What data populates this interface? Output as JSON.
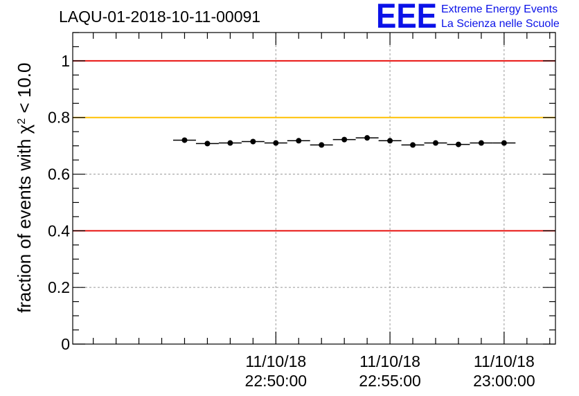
{
  "chart_data": {
    "type": "scatter",
    "title": "LAQU-01-2018-10-11-00091",
    "ylabel_prefix": "fraction of events with χ",
    "ylabel_sup": "2",
    "ylabel_suffix": " < 10.0",
    "xlabel": "",
    "ylim": [
      0,
      1.1
    ],
    "yticks": [
      0,
      0.2,
      0.4,
      0.6,
      0.8,
      1
    ],
    "ytick_labels": [
      "0",
      "0.2",
      "0.4",
      "0.6",
      "0.8",
      "1"
    ],
    "xlim_minutes": [
      -3.78,
      0.45
    ],
    "xticks": [
      {
        "min": -2.0,
        "date": "11/10/18",
        "time": "22:50:00"
      },
      {
        "min": -1.0,
        "date": "11/10/18",
        "time": "22:55:00"
      },
      {
        "min": 0.0,
        "date": "11/10/18",
        "time": "23:00:00"
      }
    ],
    "bin_width_minutes": 0.2,
    "reference_lines": [
      {
        "y": 1.0,
        "color": "#e8120f"
      },
      {
        "y": 0.8,
        "color": "#ffc000"
      },
      {
        "y": 0.4,
        "color": "#e8120f"
      }
    ],
    "series": [
      {
        "name": "fraction",
        "x_minutes": [
          -2.8,
          -2.6,
          -2.4,
          -2.2,
          -2.0,
          -1.8,
          -1.6,
          -1.4,
          -1.2,
          -1.0,
          -0.8,
          -0.6,
          -0.4,
          -0.2,
          0.0
        ],
        "values": [
          0.72,
          0.708,
          0.71,
          0.715,
          0.71,
          0.718,
          0.703,
          0.722,
          0.728,
          0.718,
          0.703,
          0.71,
          0.705,
          0.71,
          0.71
        ]
      }
    ]
  },
  "logo": {
    "text": "EEE",
    "line1": "Extreme Energy Events",
    "line2": "La Scienza nelle Scuole"
  }
}
